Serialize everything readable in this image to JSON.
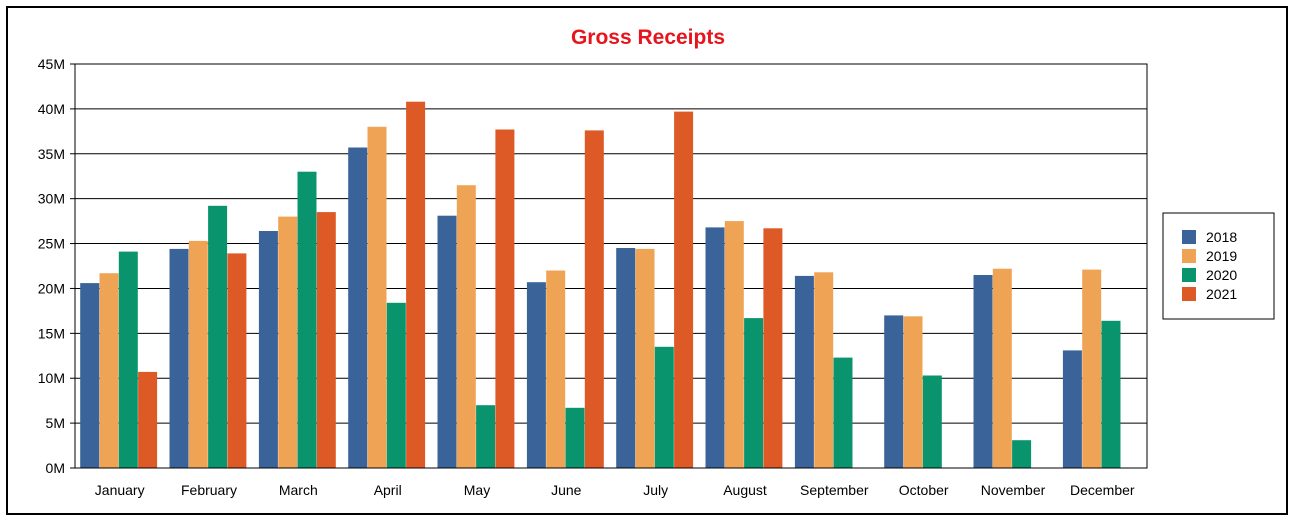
{
  "chart_data": {
    "type": "bar",
    "title": "Gross Receipts",
    "title_color": "#e8141c",
    "xlabel": "",
    "ylabel": "",
    "ylim": [
      0,
      45
    ],
    "yunit_suffix": "M",
    "yticks": [
      "0M",
      "5M",
      "10M",
      "15M",
      "20M",
      "25M",
      "30M",
      "35M",
      "40M",
      "45M"
    ],
    "grid": true,
    "legend_position": "right",
    "categories": [
      "January",
      "February",
      "March",
      "April",
      "May",
      "June",
      "July",
      "August",
      "September",
      "October",
      "November",
      "December"
    ],
    "series": [
      {
        "name": "2018",
        "color": "#3a6399",
        "values": [
          20.6,
          24.4,
          26.4,
          35.7,
          28.1,
          20.7,
          24.5,
          26.8,
          21.4,
          17.0,
          21.5,
          13.1
        ]
      },
      {
        "name": "2019",
        "color": "#eea454",
        "values": [
          21.7,
          25.3,
          28.0,
          38.0,
          31.5,
          22.0,
          24.4,
          27.5,
          21.8,
          16.9,
          22.2,
          22.1
        ]
      },
      {
        "name": "2020",
        "color": "#09946e",
        "values": [
          24.1,
          29.2,
          33.0,
          18.4,
          7.0,
          6.7,
          13.5,
          16.7,
          12.3,
          10.3,
          3.1,
          16.4
        ]
      },
      {
        "name": "2021",
        "color": "#dd5a26",
        "values": [
          10.7,
          23.9,
          28.5,
          40.8,
          37.7,
          37.6,
          39.7,
          26.7,
          null,
          null,
          null,
          null
        ]
      }
    ]
  }
}
